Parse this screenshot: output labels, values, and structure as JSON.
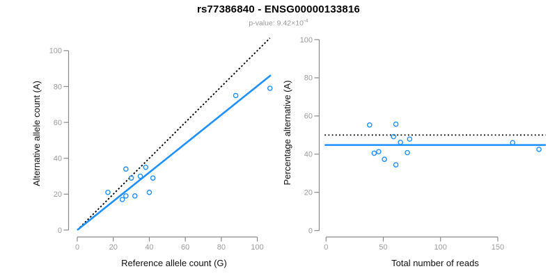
{
  "header": {
    "title": "rs77386840 - ENSG00000133816",
    "subtitle_prefix": "p-value: ",
    "subtitle_value": "9.42×10",
    "subtitle_exponent": "-4"
  },
  "colors": {
    "accent_blue": "#1E90FF",
    "reference_line": "#000000",
    "axis_line_gray": "#8a8a8a",
    "tick_label_gray": "#9b9b9b",
    "axis_title_color": "#111111"
  },
  "chart_data": [
    {
      "id": "allele-counts",
      "type": "scatter",
      "xlabel": "Reference allele count (G)",
      "ylabel": "Alternative allele count (A)",
      "xlim": [
        0,
        107.5
      ],
      "ylim": [
        0,
        107.5
      ],
      "xticks": [
        0,
        20,
        40,
        60,
        80,
        100
      ],
      "yticks": [
        0,
        20,
        40,
        60,
        80,
        100
      ],
      "grid": false,
      "legend": null,
      "points": [
        [
          17,
          21
        ],
        [
          25,
          17
        ],
        [
          27,
          19
        ],
        [
          27,
          34
        ],
        [
          30,
          29
        ],
        [
          32,
          19
        ],
        [
          35,
          30
        ],
        [
          38,
          35
        ],
        [
          40,
          21
        ],
        [
          42,
          29
        ],
        [
          88,
          75
        ],
        [
          107,
          79
        ]
      ],
      "lines": [
        {
          "name": "identity-line",
          "style": "dashed",
          "color": "#000000",
          "from": [
            0,
            0
          ],
          "to": [
            107,
            107
          ]
        },
        {
          "name": "regression-line",
          "style": "solid",
          "color": "#1E90FF",
          "from": [
            0,
            0
          ],
          "to": [
            107.5,
            86.3
          ]
        }
      ]
    },
    {
      "id": "percentage-vs-reads",
      "type": "scatter",
      "xlabel": "Total number of reads",
      "ylabel": "Percentage alternative (A)",
      "xlim": [
        0,
        192
      ],
      "ylim": [
        0,
        100
      ],
      "xticks": [
        0,
        50,
        100,
        150
      ],
      "yticks": [
        0,
        20,
        40,
        60,
        80,
        100
      ],
      "grid": false,
      "legend": null,
      "points": [
        [
          38,
          55.3
        ],
        [
          42,
          40.5
        ],
        [
          46,
          41.3
        ],
        [
          51,
          37.3
        ],
        [
          59,
          49.2
        ],
        [
          61,
          55.7
        ],
        [
          61,
          34.4
        ],
        [
          65,
          46.2
        ],
        [
          71,
          40.8
        ],
        [
          73,
          47.9
        ],
        [
          163,
          46
        ],
        [
          186,
          42.5
        ]
      ],
      "lines": [
        {
          "name": "expected-50-percent-line",
          "style": "dotted",
          "color": "#000000",
          "y": 50
        },
        {
          "name": "mean-percentage-line",
          "style": "solid",
          "color": "#1E90FF",
          "y": 44.8
        }
      ]
    }
  ]
}
